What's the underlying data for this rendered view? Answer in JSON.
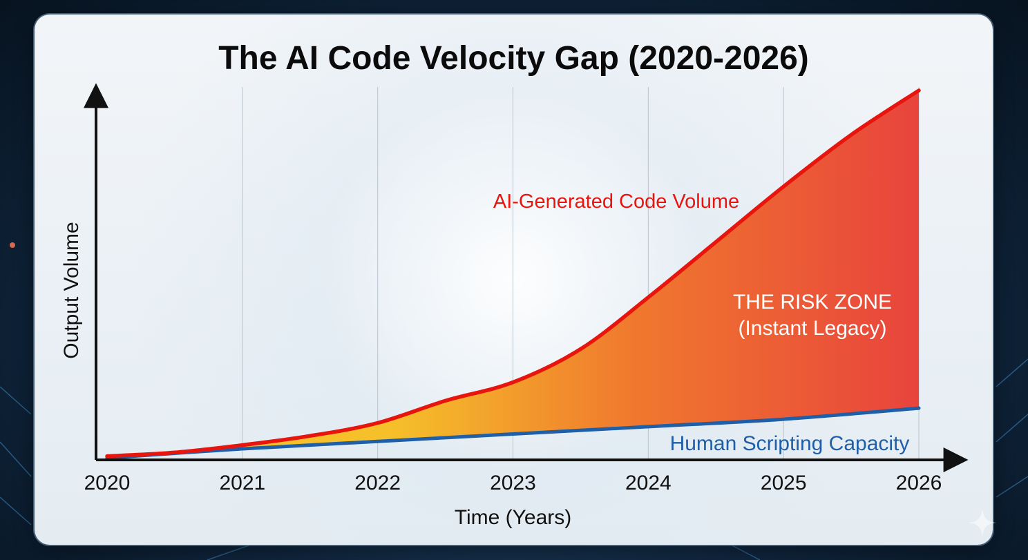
{
  "title": "The AI Code Velocity Gap (2020-2026)",
  "chart_data": {
    "type": "area",
    "title": "The AI Code Velocity Gap (2020-2026)",
    "xlabel": "Time (Years)",
    "ylabel": "Output Volume",
    "x": [
      2020,
      2021,
      2022,
      2023,
      2024,
      2025,
      2026
    ],
    "xlim": [
      2020,
      2026
    ],
    "ylim": [
      0,
      100
    ],
    "y_ticks_shown": false,
    "grid": "vertical",
    "legend": "none",
    "series": [
      {
        "name": "AI-Generated Code Volume",
        "color": "#e8150f",
        "x": [
          2020,
          2020.5,
          2021,
          2021.5,
          2022,
          2022.5,
          2023,
          2023.5,
          2024,
          2024.5,
          2025,
          2025.5,
          2026
        ],
        "values": [
          1,
          2,
          4,
          6.5,
          10,
          16,
          21,
          30,
          44,
          59,
          74,
          88,
          100
        ]
      },
      {
        "name": "Human Scripting Capacity",
        "color": "#1f5fa8",
        "x": [
          2020,
          2021,
          2022,
          2023,
          2024,
          2025,
          2026
        ],
        "values": [
          0.5,
          3,
          5,
          7,
          9,
          11,
          14
        ]
      }
    ],
    "annotations": [
      {
        "text": "AI-Generated Code Volume",
        "color": "#e8150f"
      },
      {
        "text": "THE RISK ZONE",
        "color": "#ffffff"
      },
      {
        "text": "(Instant Legacy)",
        "color": "#ffffff"
      },
      {
        "text": "Human Scripting Capacity",
        "color": "#1f5fa8"
      }
    ],
    "fill_between": {
      "from_color": "#f5c02a",
      "to_color": "#e8443c"
    }
  }
}
